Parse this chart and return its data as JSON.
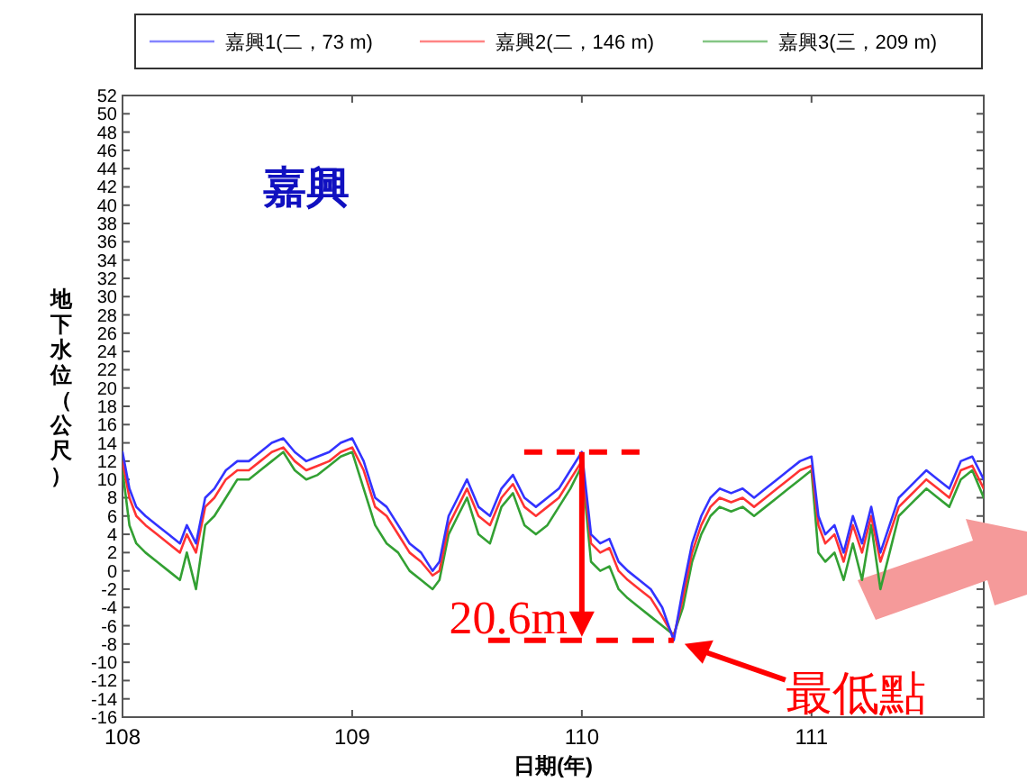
{
  "chart_data": {
    "type": "line",
    "title": "嘉興",
    "xlabel": "日期(年)",
    "ylabel": "地下水位（公尺）",
    "x": [
      108.0,
      108.03,
      108.06,
      108.1,
      108.15,
      108.2,
      108.25,
      108.28,
      108.32,
      108.36,
      108.4,
      108.45,
      108.5,
      108.55,
      108.6,
      108.65,
      108.7,
      108.75,
      108.8,
      108.85,
      108.9,
      108.95,
      109.0,
      109.05,
      109.1,
      109.15,
      109.2,
      109.25,
      109.3,
      109.35,
      109.38,
      109.42,
      109.46,
      109.5,
      109.55,
      109.6,
      109.65,
      109.7,
      109.75,
      109.8,
      109.85,
      109.9,
      109.95,
      110.0,
      110.04,
      110.08,
      110.12,
      110.16,
      110.2,
      110.25,
      110.3,
      110.35,
      110.4,
      110.44,
      110.48,
      110.52,
      110.56,
      110.6,
      110.65,
      110.7,
      110.75,
      110.8,
      110.85,
      110.9,
      110.95,
      111.0,
      111.03,
      111.06,
      111.1,
      111.14,
      111.18,
      111.22,
      111.26,
      111.3,
      111.34,
      111.38,
      111.42,
      111.46,
      111.5,
      111.55,
      111.6,
      111.65,
      111.7,
      111.75
    ],
    "series": [
      {
        "name": "嘉興1(二，73 m)",
        "color": "#3333ff",
        "values": [
          13,
          9,
          7,
          6,
          5,
          4,
          3,
          5,
          3,
          8,
          9,
          11,
          12,
          12,
          13,
          14,
          14.5,
          13,
          12,
          12.5,
          13,
          14,
          14.5,
          12,
          8,
          7,
          5,
          3,
          2,
          0,
          1,
          6,
          8,
          10,
          7,
          6,
          9,
          10.5,
          8,
          7,
          8,
          9,
          11,
          13,
          4,
          3,
          3.5,
          1,
          0,
          -1,
          -2,
          -4,
          -7.6,
          -2,
          3,
          6,
          8,
          9,
          8.5,
          9,
          8,
          9,
          10,
          11,
          12,
          12.5,
          6,
          4,
          5,
          2,
          6,
          3,
          7,
          2,
          5,
          8,
          9,
          10,
          11,
          10,
          9,
          12,
          12.5,
          10
        ]
      },
      {
        "name": "嘉興2(二，146 m)",
        "color": "#ff3333",
        "values": [
          12,
          8,
          6,
          5,
          4,
          3,
          2,
          4,
          2,
          7,
          8,
          10,
          11,
          11,
          12,
          13,
          13.5,
          12,
          11,
          11.5,
          12,
          13,
          13.5,
          11,
          7,
          6,
          4,
          2,
          1,
          -0.5,
          0,
          5,
          7,
          9,
          6,
          5,
          8,
          9.5,
          7,
          6,
          7,
          8,
          10,
          12,
          3,
          2,
          2.5,
          0,
          -1,
          -2,
          -3,
          -5,
          -7.2,
          -3,
          2,
          5,
          7,
          8,
          7.5,
          8,
          7,
          8,
          9,
          10,
          11,
          11.5,
          5,
          3,
          4,
          1,
          5,
          2,
          6,
          1,
          4,
          7,
          8,
          9,
          10,
          9,
          8,
          11,
          11.5,
          9
        ]
      },
      {
        "name": "嘉興3(三，209 m)",
        "color": "#33a033",
        "values": [
          11,
          5,
          3,
          2,
          1,
          0,
          -1,
          2,
          -2,
          5,
          6,
          8,
          10,
          10,
          11,
          12,
          13,
          11,
          10,
          10.5,
          11.5,
          12.5,
          13,
          9,
          5,
          3,
          2,
          0,
          -1,
          -2,
          -1,
          4,
          6,
          8,
          4,
          3,
          7,
          8.5,
          5,
          4,
          5,
          7,
          9,
          11.5,
          1,
          0,
          0.5,
          -2,
          -3,
          -4,
          -5,
          -6,
          -7,
          -4,
          1,
          4,
          6,
          7,
          6.5,
          7,
          6,
          7,
          8,
          9,
          10,
          11,
          2,
          1,
          2,
          -1,
          3,
          -1,
          5,
          -2,
          2,
          6,
          7,
          8,
          9,
          8,
          7,
          10,
          11,
          8
        ]
      }
    ],
    "xlim": [
      108,
      111.75
    ],
    "xticks": [
      108,
      109,
      110,
      111
    ],
    "ylim": [
      -16,
      52
    ],
    "yticks": [
      -16,
      -14,
      -12,
      -10,
      -8,
      -6,
      -4,
      -2,
      0,
      2,
      4,
      6,
      8,
      10,
      12,
      14,
      16,
      18,
      20,
      22,
      24,
      26,
      28,
      30,
      32,
      34,
      36,
      38,
      40,
      42,
      44,
      46,
      48,
      50,
      52
    ],
    "annotations": [
      {
        "text": "20.6m",
        "x": 110,
        "y": 13
      },
      {
        "text": "最低點",
        "x": 110.4,
        "y": -7.6
      }
    ],
    "legend": "top",
    "line_style": "solid",
    "marker": "none"
  }
}
